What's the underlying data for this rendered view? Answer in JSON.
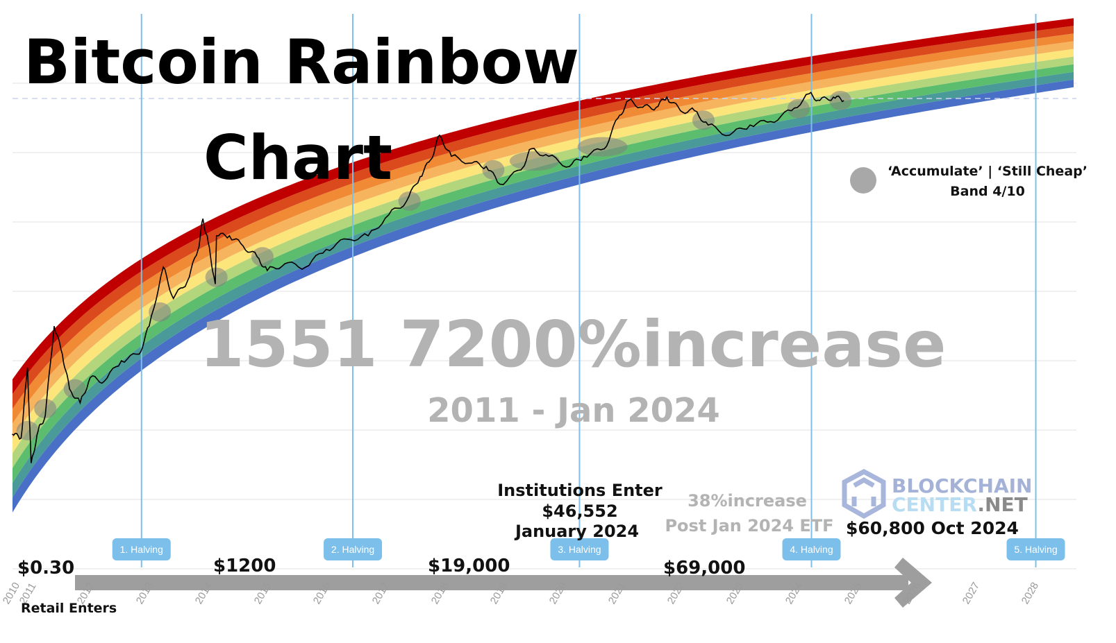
{
  "chart_data": {
    "type": "line",
    "title": "Bitcoin Rainbow Chart",
    "y_scale": "log",
    "grid": true,
    "x_ticks": [
      "2010",
      "2011",
      "2012",
      "2013",
      "2014",
      "2015",
      "2016",
      "2017",
      "2018",
      "2019",
      "2020",
      "2021",
      "2022",
      "2023",
      "2024",
      "2025",
      "2026",
      "2027",
      "2028"
    ],
    "band_colors": [
      "#4a6fc6",
      "#4b9a9a",
      "#5dbd6e",
      "#b3d67c",
      "#fce57b",
      "#f6b45f",
      "#f08a35",
      "#da4a1c",
      "#c00000"
    ],
    "price_line_color": "#000000",
    "series": [
      {
        "x": [
          2010.76,
          2010.91,
          2011.02,
          2011.08,
          2011.2,
          2011.32,
          2011.47,
          2011.61,
          2011.73,
          2011.91,
          2012.08,
          2012.32,
          2012.61,
          2012.91,
          2013.08,
          2013.32,
          2013.49,
          2013.73,
          2013.91,
          2013.99,
          2014.08,
          2014.2,
          2014.22,
          2014.44,
          2014.67,
          2014.91,
          2015.08,
          2015.38,
          2015.73,
          2016.08,
          2016.44,
          2016.79,
          2017.14,
          2017.44,
          2017.67,
          2017.85,
          2018.0,
          2018.2,
          2018.55,
          2018.79,
          2019.02,
          2019.38,
          2019.55,
          2019.85,
          2020.2,
          2020.44,
          2020.79,
          2021.02,
          2021.2,
          2021.44,
          2021.67,
          2021.85,
          2022.08,
          2022.32,
          2022.55,
          2022.91,
          2023.26,
          2023.61,
          2023.96,
          2024.26,
          2024.44,
          2024.67,
          2024.85
        ],
        "y": [
          0.8,
          0.7,
          7.6,
          0.3,
          0.9,
          1.5,
          31,
          12,
          3.7,
          2.3,
          5.4,
          4.8,
          9.6,
          12,
          31,
          229,
          79,
          144,
          417,
          1180,
          525,
          129,
          661,
          661,
          468,
          324,
          204,
          257,
          229,
          417,
          589,
          661,
          1349,
          2138,
          4898,
          8710,
          19950,
          9772,
          7762,
          6918,
          3802,
          6166,
          12589,
          9772,
          6918,
          9772,
          12589,
          35481,
          64565,
          51286,
          51286,
          72444,
          45709,
          45709,
          28184,
          19953,
          28184,
          31623,
          45709,
          81283,
          64565,
          72444,
          64565
        ]
      }
    ],
    "accumulate_markers": {
      "x": [
        2011.02,
        2011.32,
        2011.82,
        2013.26,
        2014.22,
        2015.0,
        2017.49,
        2018.91,
        2019.61,
        2020.76,
        2022.47,
        2024.08,
        2024.79
      ],
      "y": [
        0.9,
        1.9,
        3.7,
        50,
        162,
        324,
        2138,
        6166,
        8318,
        13490,
        33113,
        48978,
        64565
      ],
      "color": "#808080"
    },
    "halvings": [
      {
        "label": "1. Halving",
        "x": 2012.95
      },
      {
        "label": "2. Halving",
        "x": 2016.53
      },
      {
        "label": "3. Halving",
        "x": 2020.37
      },
      {
        "label": "4. Halving",
        "x": 2024.3
      },
      {
        "label": "5. Halving",
        "x": 2028.1
      }
    ],
    "halving_color": "#7cbfea"
  },
  "title": {
    "line1": "Bitcoin Rainbow",
    "line2": "Chart"
  },
  "watermark": {
    "increase": "1551 7200%increase",
    "range": "2011 - Jan 2024"
  },
  "legend": {
    "line1": "‘Accumulate’ | ‘Still Cheap’",
    "line2": "Band 4/10"
  },
  "annotations": {
    "start_price": "$0.30",
    "retail": "Retail Enters",
    "p1200": "$1200",
    "p19000": "$19,000",
    "p69000": "$69,000",
    "inst1": "Institutions Enter",
    "inst2": "$46,552",
    "inst3": "January 2024",
    "etf1": "38%increase",
    "etf2": "Post Jan 2024 ETF",
    "oct": "$60,800 Oct 2024"
  },
  "logo": {
    "line1": "BLOCKCHAIN",
    "line2a": "CENTER",
    "line2b": ".NET"
  }
}
